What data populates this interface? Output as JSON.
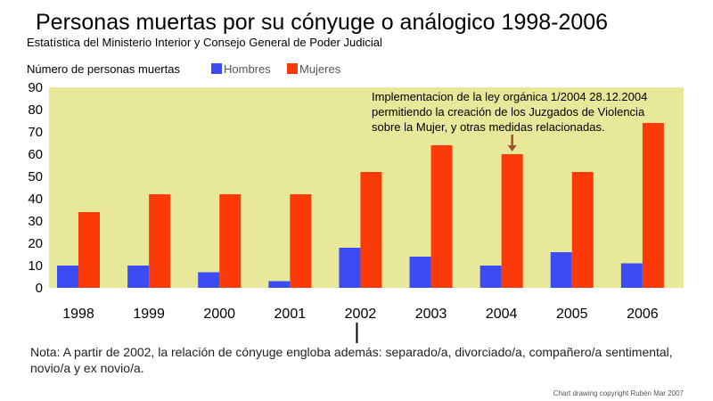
{
  "chart_data": {
    "type": "bar",
    "title": "Personas muertas por su cónyuge o análogico 1998-2006",
    "subtitle": "Estatística del Ministerio Interior y Consejo General de Poder Judicial",
    "ylabel": "Número de personas muertas",
    "categories": [
      "1998",
      "1999",
      "2000",
      "2001",
      "2002",
      "2003",
      "2004",
      "2005",
      "2006"
    ],
    "series": [
      {
        "name": "Hombres",
        "color": "#3b4cf5",
        "values": [
          10,
          10,
          7,
          3,
          18,
          14,
          10,
          16,
          11
        ]
      },
      {
        "name": "Mujeres",
        "color": "#fc3a08",
        "values": [
          34,
          42,
          42,
          42,
          52,
          64,
          60,
          52,
          74
        ]
      }
    ],
    "ylim": [
      0,
      90
    ],
    "yticks": [
      "90",
      "80",
      "70",
      "60",
      "50",
      "40",
      "30",
      "20",
      "10",
      "0"
    ],
    "legend_position": "top-left",
    "grid": false,
    "background_color": "#e8e89a",
    "annotation": {
      "lines": [
        "Implementacion de la ley orgánica 1/2004 28.12.2004",
        "permitiendo la creación de los Juzgados de Violencia",
        "sobre la Mujer, y otras medidas relacionadas."
      ],
      "category": "2004",
      "arrow_color": "#a0522d"
    },
    "marker_category": "2002",
    "note_lines": [
      "Nota: A partir de 2002, la relación de cónyuge engloba además: separado/a, divorciado/a, compañero/a sentimental,",
      "novio/a y ex novio/a."
    ],
    "copyright": "Chart drawing copyright Rubén Mar 2007"
  }
}
